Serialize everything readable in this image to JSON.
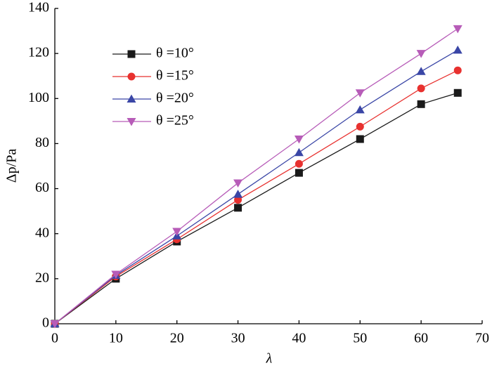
{
  "chart_data": {
    "type": "line",
    "xlabel": "λ",
    "ylabel": "Δp/Pa",
    "x": [
      0,
      10,
      20,
      30,
      40,
      50,
      60,
      66
    ],
    "xlim": [
      0,
      70
    ],
    "xticks": [
      0,
      10,
      20,
      30,
      40,
      50,
      60,
      70
    ],
    "ylim": [
      0,
      140
    ],
    "yticks": [
      0,
      20,
      40,
      60,
      80,
      100,
      120,
      140
    ],
    "grid": false,
    "legend": "upper left",
    "series": [
      {
        "name": "θ =10°",
        "color": "#1a1a1a",
        "marker": "square",
        "values": [
          0,
          20,
          36.5,
          51.5,
          67,
          82,
          97.5,
          102.5
        ]
      },
      {
        "name": "θ =15°",
        "color": "#e8312f",
        "marker": "circle",
        "values": [
          0,
          21,
          37.5,
          55,
          71,
          87.5,
          104.5,
          112.5
        ]
      },
      {
        "name": "θ =20°",
        "color": "#3a46a6",
        "marker": "triangle-up",
        "values": [
          0,
          21.5,
          39,
          57.5,
          76,
          95,
          112,
          121.5
        ]
      },
      {
        "name": "θ =25°",
        "color": "#b75cb8",
        "marker": "triangle-down",
        "values": [
          0,
          22,
          41,
          62.5,
          82,
          102.5,
          120,
          131
        ]
      }
    ]
  }
}
